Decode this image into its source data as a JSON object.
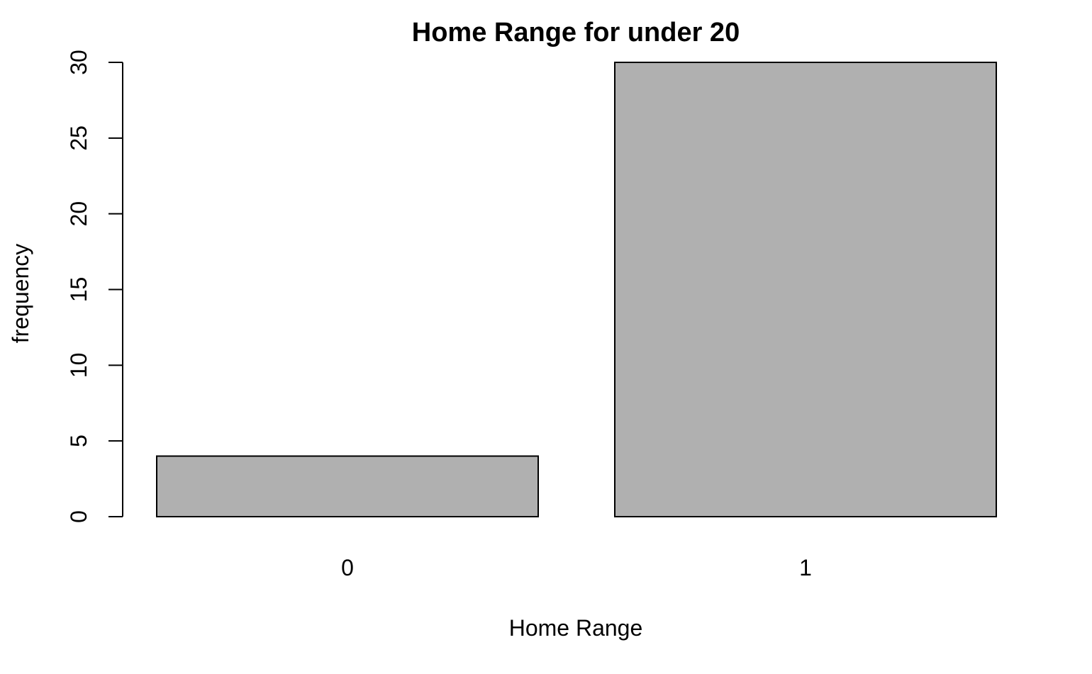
{
  "chart_data": {
    "type": "bar",
    "title": "Home Range for under 20",
    "xlabel": "Home Range",
    "ylabel": "frequency",
    "categories": [
      "0",
      "1"
    ],
    "values": [
      4,
      30
    ],
    "ylim": [
      0,
      30
    ],
    "yticks": [
      0,
      5,
      10,
      15,
      20,
      25,
      30
    ],
    "ytick_labels": [
      "0",
      "5",
      "10",
      "15",
      "20",
      "25",
      "30"
    ],
    "bar_fill": "#b0b0b0",
    "bar_stroke": "#000000",
    "grid": false,
    "legend": "none"
  }
}
